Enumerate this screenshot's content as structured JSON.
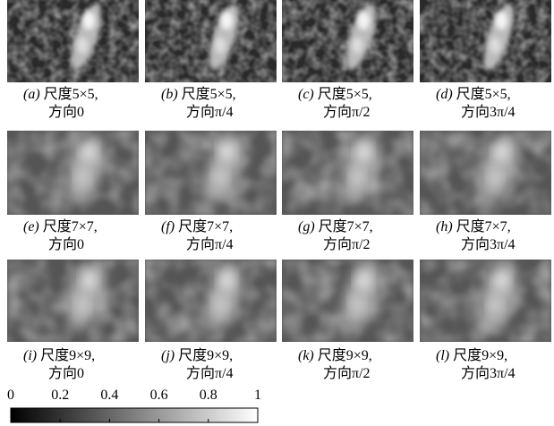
{
  "panels": [
    {
      "label": "(a)",
      "scale": "尺度5×5,",
      "direction": "方向0"
    },
    {
      "label": "(b)",
      "scale": "尺度5×5,",
      "direction": "方向π/4"
    },
    {
      "label": "(c)",
      "scale": "尺度5×5,",
      "direction": "方向π/2"
    },
    {
      "label": "(d)",
      "scale": "尺度5×5,",
      "direction": "方向3π/4"
    },
    {
      "label": "(e)",
      "scale": "尺度7×7,",
      "direction": "方向0"
    },
    {
      "label": "(f)",
      "scale": "尺度7×7,",
      "direction": "方向π/4"
    },
    {
      "label": "(g)",
      "scale": "尺度7×7,",
      "direction": "方向π/2"
    },
    {
      "label": "(h)",
      "scale": "尺度7×7,",
      "direction": "方向3π/4"
    },
    {
      "label": "(i)",
      "scale": "尺度9×9,",
      "direction": "方向0"
    },
    {
      "label": "(j)",
      "scale": "尺度9×9,",
      "direction": "方向π/4"
    },
    {
      "label": "(k)",
      "scale": "尺度9×9,",
      "direction": "方向π/2"
    },
    {
      "label": "(l)",
      "scale": "尺度9×9,",
      "direction": "方向3π/4"
    }
  ],
  "colorbar": {
    "range": [
      0,
      1
    ],
    "ticks": [
      0,
      0.2,
      0.4,
      0.6,
      0.8,
      1
    ]
  }
}
